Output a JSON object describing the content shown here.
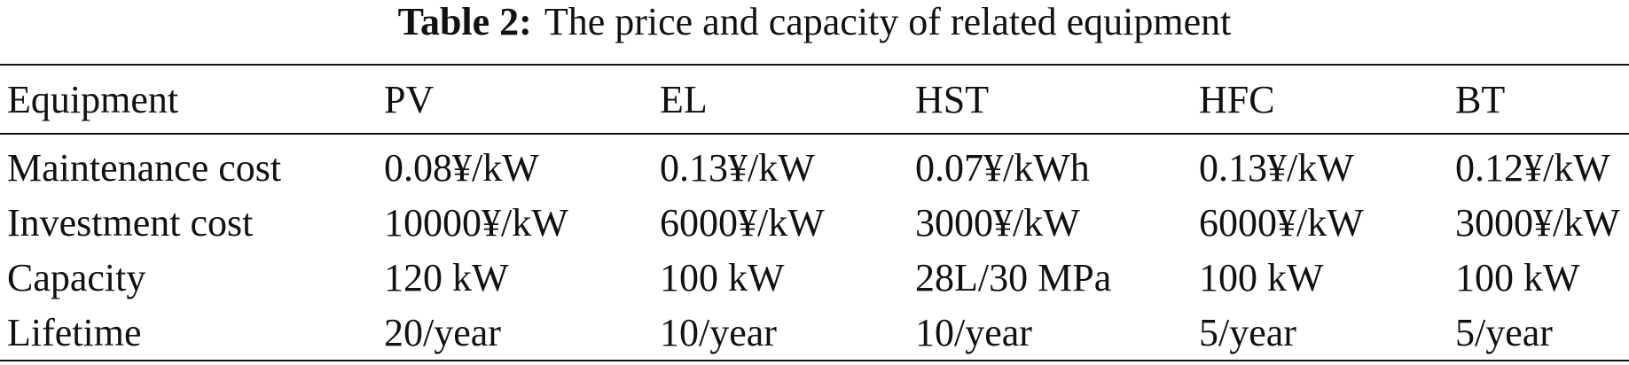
{
  "caption": {
    "label": "Table 2:",
    "text": "The price and capacity of related equipment"
  },
  "table": {
    "headers": [
      "Equipment",
      "PV",
      "EL",
      "HST",
      "HFC",
      "BT"
    ],
    "rows": [
      [
        "Maintenance cost",
        "0.08¥/kW",
        "0.13¥/kW",
        "0.07¥/kWh",
        "0.13¥/kW",
        "0.12¥/kW"
      ],
      [
        "Investment cost",
        "10000¥/kW",
        "6000¥/kW",
        "3000¥/kW",
        "6000¥/kW",
        "3000¥/kW"
      ],
      [
        "Capacity",
        "120 kW",
        "100 kW",
        "28L/30 MPa",
        "100 kW",
        "100 kW"
      ],
      [
        "Lifetime",
        "20/year",
        "10/year",
        "10/year",
        "5/year",
        "5/year"
      ]
    ]
  }
}
